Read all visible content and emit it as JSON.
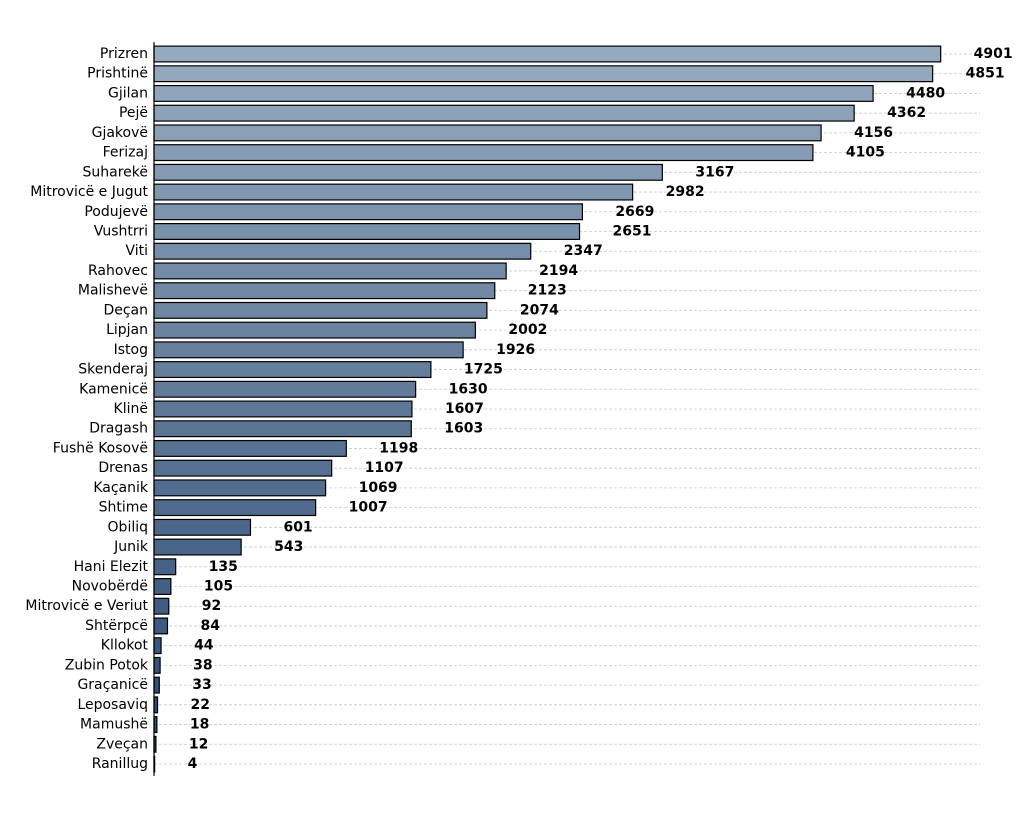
{
  "chart_data": {
    "type": "barh",
    "categories": [
      "Prizren",
      "Prishtinë",
      "Gjilan",
      "Pejë",
      "Gjakovë",
      "Ferizaj",
      "Suharekë",
      "Mitrovicë e Jugut",
      "Podujevë",
      "Vushtrri",
      "Viti",
      "Rahovec",
      "Malishevë",
      "Deçan",
      "Lipjan",
      "Istog",
      "Skenderaj",
      "Kamenicë",
      "Klinë",
      "Dragash",
      "Fushë Kosovë",
      "Drenas",
      "Kaçanik",
      "Shtime",
      "Obiliq",
      "Junik",
      "Hani Elezit",
      "Novobërdë",
      "Mitrovicë e Veriut",
      "Shtërpcë",
      "Kllokot",
      "Zubin Potok",
      "Graçanicë",
      "Leposaviq",
      "Mamushë",
      "Zveçan",
      "Ranillug"
    ],
    "values": [
      4901,
      4851,
      4480,
      4362,
      4156,
      4105,
      3167,
      2982,
      2669,
      2651,
      2347,
      2194,
      2123,
      2074,
      2002,
      1926,
      1725,
      1630,
      1607,
      1603,
      1198,
      1107,
      1069,
      1007,
      601,
      543,
      135,
      105,
      92,
      84,
      44,
      38,
      33,
      22,
      18,
      12,
      4
    ],
    "xlim": [
      0,
      5146
    ],
    "gradient": [
      "#96aabf",
      "#274670"
    ],
    "grid": true
  }
}
